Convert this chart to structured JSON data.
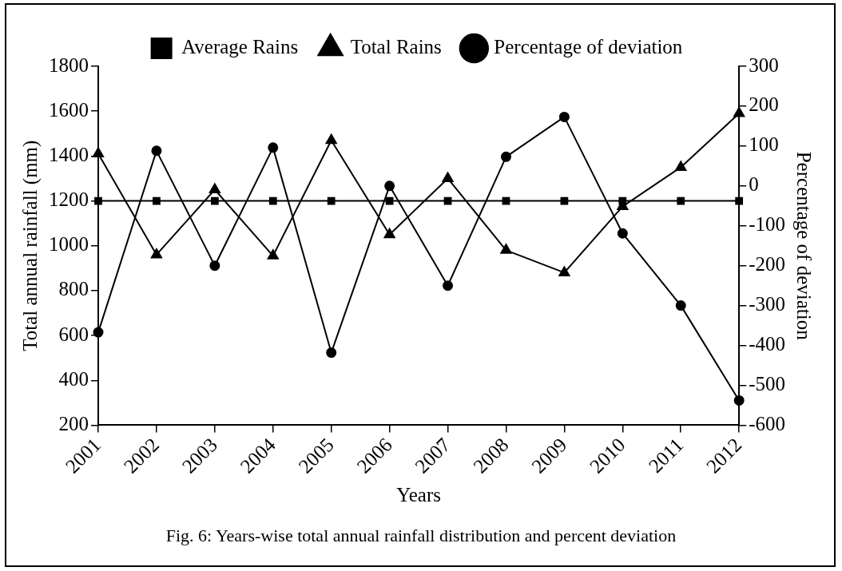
{
  "chart_data": {
    "type": "line",
    "xlabel": "Years",
    "ylabel": "Total annual rainfall (mm)",
    "y2label": "Percentage of deviation",
    "categories": [
      "2001",
      "2002",
      "2003",
      "2004",
      "2005",
      "2006",
      "2007",
      "2008",
      "2009",
      "2010",
      "2011",
      "2012"
    ],
    "series": [
      {
        "name": "Average Rains",
        "color": "#000000",
        "marker": "square",
        "values": [
          1200,
          1200,
          1200,
          1200,
          1200,
          1200,
          1200,
          1200,
          1200,
          1200,
          1200,
          1200
        ]
      },
      {
        "name": "Total Rains",
        "color": "#000000",
        "marker": "triangle",
        "values": [
          1410,
          960,
          1250,
          955,
          1470,
          1050,
          1300,
          980,
          880,
          1175,
          1350,
          1590
        ]
      },
      {
        "name": "Percentage of deviation",
        "color": "#000000",
        "marker": "circle",
        "axis": "y2",
        "values": [
          -367,
          88,
          -200,
          96,
          -418,
          0,
          -250,
          73,
          173,
          -119,
          -300,
          -538
        ]
      }
    ],
    "ylim": [
      200,
      1800
    ],
    "yticks": [
      200,
      400,
      600,
      800,
      1000,
      1200,
      1400,
      1600,
      1800
    ],
    "y2lim": [
      -600,
      300
    ],
    "y2ticks": [
      -600,
      -500,
      -400,
      -300,
      -200,
      -100,
      0,
      100,
      200,
      300
    ],
    "legend": "top",
    "line_style": "solid",
    "annotations": [
      "Fig. 6: Years-wise total annual rainfall distribution and percent deviation"
    ]
  }
}
